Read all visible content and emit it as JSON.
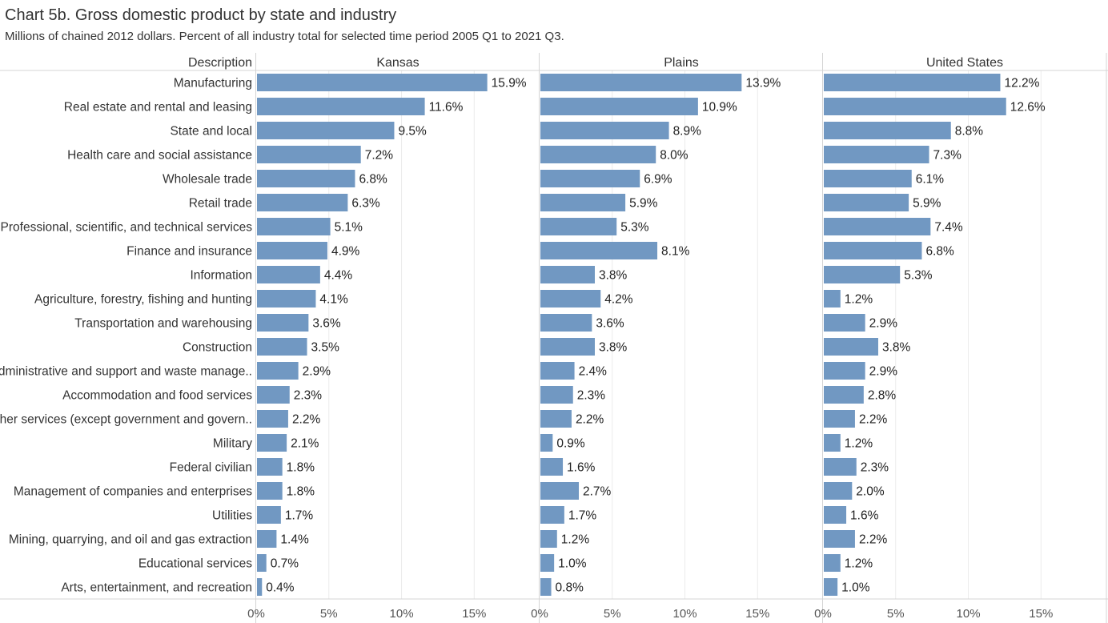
{
  "header": {
    "title": "Chart 5b. Gross domestic product by state and industry",
    "subtitle": "Millions of chained 2012 dollars. Percent of all industry total for selected time period 2005 Q1 to 2021 Q3."
  },
  "colors": {
    "bar": "#7198c2",
    "grid": "#ebebeb",
    "divider": "#d4d4d4",
    "text": "#333333",
    "tick": "#555555"
  },
  "chart_data": {
    "type": "bar",
    "orientation": "horizontal",
    "row_header": "Description",
    "panels": [
      "Kansas",
      "Plains",
      "United States"
    ],
    "xlim": [
      0,
      19.5
    ],
    "xticks": [
      0,
      5,
      10,
      15
    ],
    "xtick_labels": [
      "0%",
      "5%",
      "10%",
      "15%"
    ],
    "value_format": "percent-1dp",
    "grid": true,
    "categories": [
      "Manufacturing",
      "Real estate and rental and leasing",
      "State and local",
      "Health care and social assistance",
      "Wholesale trade",
      "Retail trade",
      "Professional, scientific, and technical services",
      "Finance and insurance",
      "Information",
      "Agriculture, forestry, fishing and hunting",
      "Transportation and warehousing",
      "Construction",
      "Administrative and support and waste manage..",
      "Accommodation and food services",
      "Other services (except government and govern..",
      "Military",
      "Federal civilian",
      "Management of companies and enterprises",
      "Utilities",
      "Mining, quarrying, and oil and gas extraction",
      "Educational services",
      "Arts, entertainment, and recreation"
    ],
    "series": [
      {
        "name": "Kansas",
        "values": [
          15.9,
          11.6,
          9.5,
          7.2,
          6.8,
          6.3,
          5.1,
          4.9,
          4.4,
          4.1,
          3.6,
          3.5,
          2.9,
          2.3,
          2.2,
          2.1,
          1.8,
          1.8,
          1.7,
          1.4,
          0.7,
          0.4
        ]
      },
      {
        "name": "Plains",
        "values": [
          13.9,
          10.9,
          8.9,
          8.0,
          6.9,
          5.9,
          5.3,
          8.1,
          3.8,
          4.2,
          3.6,
          3.8,
          2.4,
          2.3,
          2.2,
          0.9,
          1.6,
          2.7,
          1.7,
          1.2,
          1.0,
          0.8
        ]
      },
      {
        "name": "United States",
        "values": [
          12.2,
          12.6,
          8.8,
          7.3,
          6.1,
          5.9,
          7.4,
          6.8,
          5.3,
          1.2,
          2.9,
          3.8,
          2.9,
          2.8,
          2.2,
          1.2,
          2.3,
          2.0,
          1.6,
          2.2,
          1.2,
          1.0
        ]
      }
    ]
  }
}
